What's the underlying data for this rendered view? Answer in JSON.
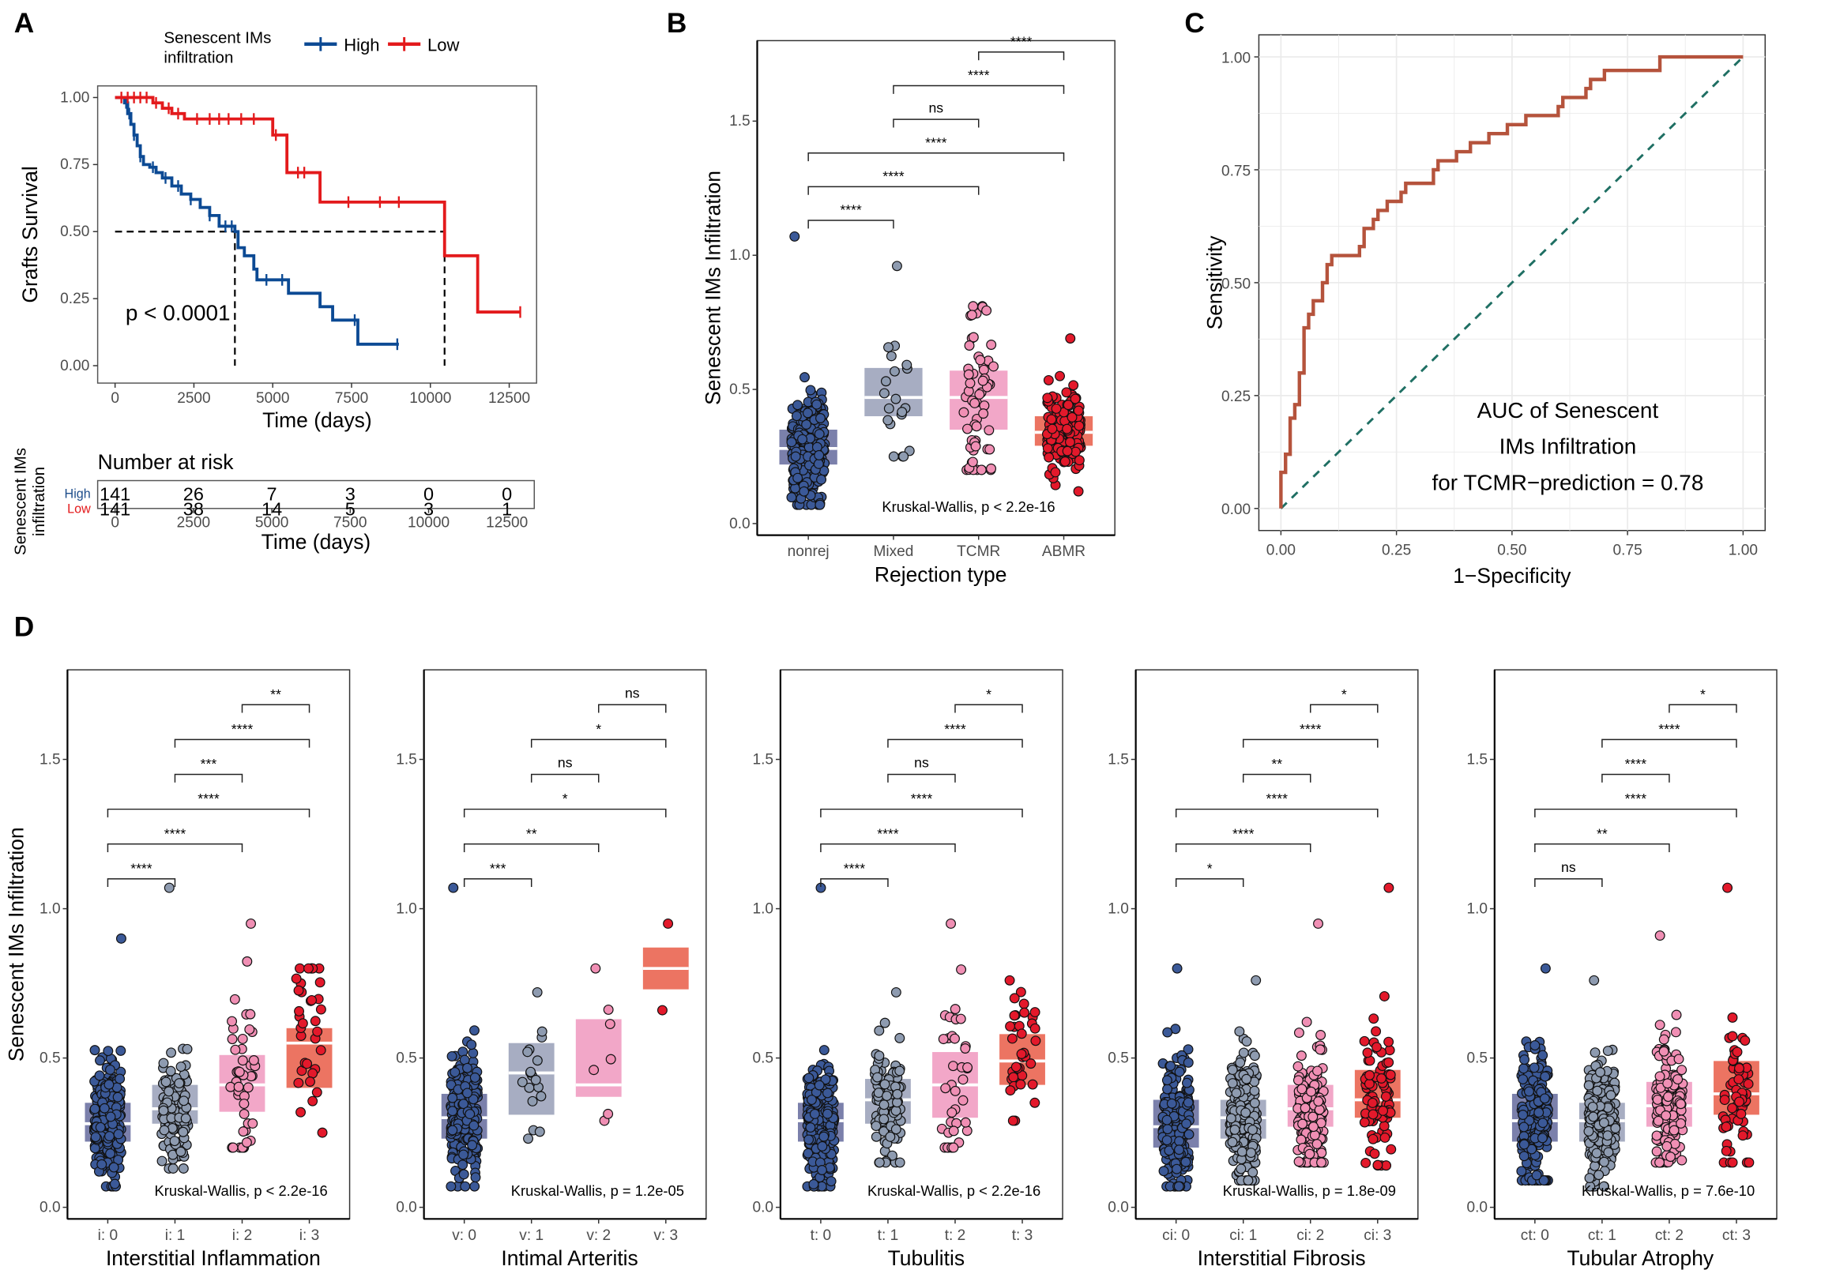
{
  "panels": {
    "A": {
      "label": "A"
    },
    "B": {
      "label": "B"
    },
    "C": {
      "label": "C"
    },
    "D": {
      "label": "D"
    }
  },
  "chart_data": [
    {
      "id": "A",
      "type": "line",
      "subtype": "kaplan-meier",
      "legend_title": "Senescent IMs infiltration",
      "legend_position": "top",
      "xlabel": "Time (days)",
      "ylabel": "Grafts Survival",
      "xlim": [
        0,
        13000
      ],
      "ylim": [
        0,
        1
      ],
      "xticks": [
        0,
        2500,
        5000,
        7500,
        10000,
        12500
      ],
      "yticks": [
        "0.00",
        "0.25",
        "0.50",
        "0.75",
        "1.00"
      ],
      "annotation": "p < 0.0001",
      "median_survival": {
        "High": 3800,
        "Low": 10450
      },
      "series": [
        {
          "name": "High",
          "color": "#0c4a94",
          "x": [
            0,
            300,
            400,
            500,
            600,
            700,
            800,
            900,
            1100,
            1300,
            1500,
            1800,
            2100,
            2400,
            2700,
            3000,
            3300,
            3800,
            3900,
            4100,
            4400,
            4500,
            5500,
            6500,
            6900,
            7700,
            9000
          ],
          "y": [
            1.0,
            0.98,
            0.94,
            0.9,
            0.86,
            0.82,
            0.78,
            0.75,
            0.74,
            0.72,
            0.7,
            0.67,
            0.64,
            0.62,
            0.59,
            0.56,
            0.52,
            0.5,
            0.44,
            0.41,
            0.36,
            0.32,
            0.27,
            0.22,
            0.17,
            0.08,
            0.08
          ],
          "censor_x": [
            350,
            450,
            600,
            800,
            1200,
            1600,
            2000,
            2400,
            3000,
            3500,
            3700,
            4800,
            5300,
            7600,
            8950
          ]
        },
        {
          "name": "Low",
          "color": "#e31a1c",
          "x": [
            0,
            1200,
            1500,
            1800,
            2200,
            5000,
            5300,
            5450,
            6500,
            10450,
            11500,
            12850
          ],
          "y": [
            1.0,
            0.98,
            0.96,
            0.94,
            0.92,
            0.86,
            0.86,
            0.72,
            0.61,
            0.41,
            0.2,
            0.2
          ],
          "censor_x": [
            200,
            400,
            600,
            800,
            1000,
            1300,
            1700,
            2000,
            2600,
            3000,
            3300,
            3600,
            4000,
            4400,
            5100,
            5800,
            6000,
            7400,
            8400,
            9000,
            12850
          ]
        }
      ],
      "risk_table": {
        "title": "Number at risk",
        "group_label": "Senescent IMs infiltration",
        "xlabel": "Time (days)",
        "times": [
          0,
          2500,
          5000,
          7500,
          10000,
          12500
        ],
        "rows": [
          {
            "name": "High",
            "color": "#1f4e8c",
            "values": [
              141,
              26,
              7,
              3,
              0,
              0
            ]
          },
          {
            "name": "Low",
            "color": "#e31a1c",
            "values": [
              141,
              38,
              14,
              5,
              3,
              1
            ]
          }
        ]
      }
    },
    {
      "id": "B",
      "type": "scatter",
      "subtype": "crossbar-jitter",
      "xlabel": "Rejection type",
      "ylabel": "Senescent IMs Infiltration",
      "ylim": [
        0,
        1.8
      ],
      "yticks": [
        "0.0",
        "0.5",
        "1.0",
        "1.5"
      ],
      "categories": [
        "nonrej",
        "Mixed",
        "TCMR",
        "ABMR"
      ],
      "annotation": "Kruskal-Wallis, p < 2.2e-16",
      "groups": [
        {
          "name": "nonrej",
          "q1": 0.22,
          "median": 0.28,
          "q3": 0.35,
          "min": 0.07,
          "max": 1.07,
          "n": 400
        },
        {
          "name": "Mixed",
          "q1": 0.4,
          "median": 0.47,
          "q3": 0.58,
          "min": 0.25,
          "max": 0.96,
          "n": 20
        },
        {
          "name": "TCMR",
          "q1": 0.35,
          "median": 0.47,
          "q3": 0.57,
          "min": 0.2,
          "max": 0.81,
          "n": 60
        },
        {
          "name": "ABMR",
          "q1": 0.29,
          "median": 0.34,
          "q3": 0.4,
          "min": 0.12,
          "max": 0.69,
          "n": 150
        }
      ],
      "comparisons": [
        {
          "from": 0,
          "to": 1,
          "label": "****"
        },
        {
          "from": 0,
          "to": 2,
          "label": "****"
        },
        {
          "from": 0,
          "to": 3,
          "label": "****"
        },
        {
          "from": 1,
          "to": 2,
          "label": "ns"
        },
        {
          "from": 1,
          "to": 3,
          "label": "****"
        },
        {
          "from": 2,
          "to": 3,
          "label": "****"
        }
      ]
    },
    {
      "id": "C",
      "type": "line",
      "subtype": "roc",
      "xlabel": "1−Specificity",
      "ylabel": "Sensitivity",
      "xlim": [
        0,
        1
      ],
      "ylim": [
        0,
        1
      ],
      "xticks": [
        "0.00",
        "0.25",
        "0.50",
        "0.75",
        "1.00"
      ],
      "yticks": [
        "0.00",
        "0.25",
        "0.50",
        "0.75",
        "1.00"
      ],
      "grid": true,
      "annotation": [
        "AUC of Senescent",
        "IMs Infiltration",
        "for TCMR−prediction = 0.78"
      ],
      "auc": 0.78,
      "series": [
        {
          "name": "ROC",
          "color": "#b5533c",
          "x": [
            0.0,
            0.01,
            0.02,
            0.03,
            0.04,
            0.05,
            0.06,
            0.07,
            0.09,
            0.1,
            0.11,
            0.17,
            0.18,
            0.2,
            0.21,
            0.23,
            0.26,
            0.27,
            0.33,
            0.34,
            0.38,
            0.41,
            0.45,
            0.49,
            0.53,
            0.6,
            0.61,
            0.66,
            0.67,
            0.7,
            0.71,
            0.82,
            0.83,
            1.0
          ],
          "y": [
            0.0,
            0.08,
            0.12,
            0.2,
            0.23,
            0.3,
            0.4,
            0.43,
            0.46,
            0.5,
            0.54,
            0.56,
            0.58,
            0.62,
            0.64,
            0.66,
            0.68,
            0.7,
            0.72,
            0.75,
            0.77,
            0.79,
            0.81,
            0.83,
            0.85,
            0.87,
            0.89,
            0.91,
            0.93,
            0.95,
            0.97,
            0.97,
            1.0,
            1.0
          ]
        },
        {
          "name": "Reference",
          "color": "#1f6f63",
          "dashed": true,
          "x": [
            0,
            1
          ],
          "y": [
            0,
            1
          ]
        }
      ]
    },
    {
      "id": "D1",
      "type": "scatter",
      "subtype": "crossbar-jitter",
      "xlabel": "Interstitial Inflammation",
      "ylabel": "Senescent IMs Infiltration",
      "ylim": [
        0,
        1.8
      ],
      "yticks": [
        "0.0",
        "0.5",
        "1.0",
        "1.5"
      ],
      "categories": [
        "i: 0",
        "i: 1",
        "i: 2",
        "i: 3"
      ],
      "annotation": "Kruskal-Wallis, p < 2.2e-16",
      "groups": [
        {
          "q1": 0.22,
          "median": 0.28,
          "q3": 0.35,
          "min": 0.07,
          "max": 0.9,
          "n": 380
        },
        {
          "q1": 0.28,
          "median": 0.33,
          "q3": 0.41,
          "min": 0.13,
          "max": 1.07,
          "n": 120
        },
        {
          "q1": 0.32,
          "median": 0.41,
          "q3": 0.51,
          "min": 0.2,
          "max": 0.95,
          "n": 45
        },
        {
          "q1": 0.4,
          "median": 0.55,
          "q3": 0.6,
          "min": 0.25,
          "max": 0.8,
          "n": 35
        }
      ],
      "comparisons": [
        {
          "from": 0,
          "to": 1,
          "label": "****"
        },
        {
          "from": 0,
          "to": 2,
          "label": "****"
        },
        {
          "from": 0,
          "to": 3,
          "label": "****"
        },
        {
          "from": 1,
          "to": 2,
          "label": "***"
        },
        {
          "from": 1,
          "to": 3,
          "label": "****"
        },
        {
          "from": 2,
          "to": 3,
          "label": "**"
        }
      ]
    },
    {
      "id": "D2",
      "type": "scatter",
      "subtype": "crossbar-jitter",
      "xlabel": "Intimal Arteritis",
      "ylabel": "",
      "ylim": [
        0,
        1.8
      ],
      "yticks": [
        "0.0",
        "0.5",
        "1.0",
        "1.5"
      ],
      "categories": [
        "v: 0",
        "v: 1",
        "v: 2",
        "v: 3"
      ],
      "annotation": "Kruskal-Wallis, p = 1.2e-05",
      "groups": [
        {
          "q1": 0.23,
          "median": 0.3,
          "q3": 0.38,
          "min": 0.07,
          "max": 1.07,
          "n": 450
        },
        {
          "q1": 0.31,
          "median": 0.45,
          "q3": 0.55,
          "min": 0.23,
          "max": 0.72,
          "n": 18
        },
        {
          "q1": 0.37,
          "median": 0.41,
          "q3": 0.63,
          "min": 0.29,
          "max": 0.8,
          "n": 7
        },
        {
          "q1": 0.73,
          "median": 0.8,
          "q3": 0.87,
          "min": 0.66,
          "max": 0.95,
          "n": 2
        }
      ],
      "comparisons": [
        {
          "from": 0,
          "to": 1,
          "label": "***"
        },
        {
          "from": 0,
          "to": 2,
          "label": "**"
        },
        {
          "from": 0,
          "to": 3,
          "label": "*"
        },
        {
          "from": 1,
          "to": 2,
          "label": "ns"
        },
        {
          "from": 1,
          "to": 3,
          "label": "*"
        },
        {
          "from": 2,
          "to": 3,
          "label": "ns"
        }
      ]
    },
    {
      "id": "D3",
      "type": "scatter",
      "subtype": "crossbar-jitter",
      "xlabel": "Tubulitis",
      "ylabel": "",
      "ylim": [
        0,
        1.8
      ],
      "yticks": [
        "0.0",
        "0.5",
        "1.0",
        "1.5"
      ],
      "categories": [
        "t: 0",
        "t: 1",
        "t: 2",
        "t: 3"
      ],
      "annotation": "Kruskal-Wallis, p < 2.2e-16",
      "groups": [
        {
          "q1": 0.22,
          "median": 0.29,
          "q3": 0.35,
          "min": 0.07,
          "max": 1.07,
          "n": 380
        },
        {
          "q1": 0.28,
          "median": 0.36,
          "q3": 0.43,
          "min": 0.15,
          "max": 0.72,
          "n": 100
        },
        {
          "q1": 0.3,
          "median": 0.41,
          "q3": 0.52,
          "min": 0.2,
          "max": 0.95,
          "n": 40
        },
        {
          "q1": 0.41,
          "median": 0.49,
          "q3": 0.58,
          "min": 0.29,
          "max": 0.76,
          "n": 40
        }
      ],
      "comparisons": [
        {
          "from": 0,
          "to": 1,
          "label": "****"
        },
        {
          "from": 0,
          "to": 2,
          "label": "****"
        },
        {
          "from": 0,
          "to": 3,
          "label": "****"
        },
        {
          "from": 1,
          "to": 2,
          "label": "ns"
        },
        {
          "from": 1,
          "to": 3,
          "label": "****"
        },
        {
          "from": 2,
          "to": 3,
          "label": "*"
        }
      ]
    },
    {
      "id": "D4",
      "type": "scatter",
      "subtype": "crossbar-jitter",
      "xlabel": "Interstitial Fibrosis",
      "ylabel": "",
      "ylim": [
        0,
        1.8
      ],
      "yticks": [
        "0.0",
        "0.5",
        "1.0",
        "1.5"
      ],
      "categories": [
        "ci: 0",
        "ci: 1",
        "ci: 2",
        "ci: 3"
      ],
      "annotation": "Kruskal-Wallis, p = 1.8e-09",
      "groups": [
        {
          "q1": 0.2,
          "median": 0.27,
          "q3": 0.36,
          "min": 0.07,
          "max": 0.8,
          "n": 200
        },
        {
          "q1": 0.23,
          "median": 0.3,
          "q3": 0.36,
          "min": 0.09,
          "max": 0.76,
          "n": 200
        },
        {
          "q1": 0.27,
          "median": 0.33,
          "q3": 0.41,
          "min": 0.15,
          "max": 0.95,
          "n": 150
        },
        {
          "q1": 0.3,
          "median": 0.36,
          "q3": 0.46,
          "min": 0.14,
          "max": 1.07,
          "n": 90
        }
      ],
      "comparisons": [
        {
          "from": 0,
          "to": 1,
          "label": "*"
        },
        {
          "from": 0,
          "to": 2,
          "label": "****"
        },
        {
          "from": 0,
          "to": 3,
          "label": "****"
        },
        {
          "from": 1,
          "to": 2,
          "label": "**"
        },
        {
          "from": 1,
          "to": 3,
          "label": "****"
        },
        {
          "from": 2,
          "to": 3,
          "label": "*"
        }
      ]
    },
    {
      "id": "D5",
      "type": "scatter",
      "subtype": "crossbar-jitter",
      "xlabel": "Tubular Atrophy",
      "ylabel": "",
      "ylim": [
        0,
        1.8
      ],
      "yticks": [
        "0.0",
        "0.5",
        "1.0",
        "1.5"
      ],
      "categories": [
        "ct: 0",
        "ct: 1",
        "ct: 2",
        "ct: 3"
      ],
      "annotation": "Kruskal-Wallis, p = 7.6e-10",
      "groups": [
        {
          "q1": 0.22,
          "median": 0.29,
          "q3": 0.38,
          "min": 0.09,
          "max": 0.8,
          "n": 200
        },
        {
          "q1": 0.22,
          "median": 0.29,
          "q3": 0.35,
          "min": 0.07,
          "max": 0.76,
          "n": 250
        },
        {
          "q1": 0.27,
          "median": 0.34,
          "q3": 0.42,
          "min": 0.15,
          "max": 0.91,
          "n": 150
        },
        {
          "q1": 0.31,
          "median": 0.38,
          "q3": 0.49,
          "min": 0.15,
          "max": 1.07,
          "n": 60
        }
      ],
      "comparisons": [
        {
          "from": 0,
          "to": 1,
          "label": "ns"
        },
        {
          "from": 0,
          "to": 2,
          "label": "**"
        },
        {
          "from": 0,
          "to": 3,
          "label": "****"
        },
        {
          "from": 1,
          "to": 2,
          "label": "****"
        },
        {
          "from": 1,
          "to": 3,
          "label": "****"
        },
        {
          "from": 2,
          "to": 3,
          "label": "*"
        }
      ]
    }
  ],
  "palette": {
    "groups_box": [
      "#7b80ab",
      "#a7adc2",
      "#f2a7c8",
      "#ec7462"
    ],
    "groups_pt": [
      "#3b5998",
      "#8e9bb0",
      "#f08fb4",
      "#e3192b"
    ]
  }
}
